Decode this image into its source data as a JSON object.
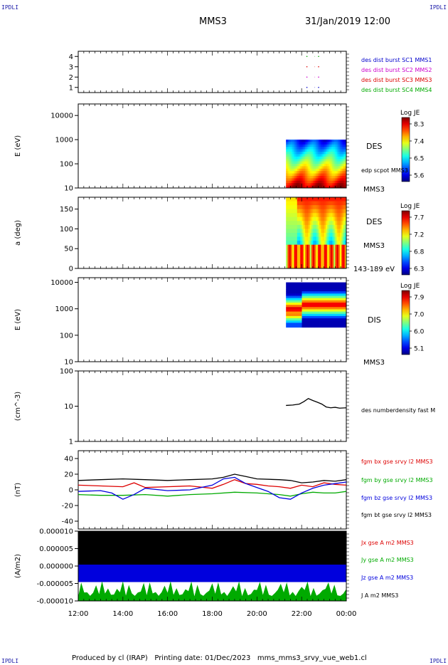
{
  "header": {
    "corner_label": "IPDLI",
    "spacecraft": "MMS3",
    "datetime": "31/Jan/2019 12:00"
  },
  "footer": {
    "produced_by": "Produced by cl (IRAP)",
    "printing_date": "Printing date: 01/Dec/2023",
    "filename": "mms_mms3_srvy_vue_web1.cl"
  },
  "colors": {
    "mms1": "#0000cc",
    "mms2": "#cc00cc",
    "mms3": "#dd0000",
    "mms4": "#00aa00",
    "bx": "#dd0000",
    "by": "#00aa00",
    "bz": "#0000dd",
    "bt": "#000000"
  },
  "chart_data": [
    {
      "id": "burst",
      "type": "line",
      "ylim": [
        0.5,
        4.5
      ],
      "yticks": [
        "1",
        "2",
        "3",
        "4"
      ],
      "series": [
        {
          "name": "des dist burst SC1 MMS1",
          "color": "#0000cc",
          "y": 1,
          "x_hours": [
            10.3,
            10.6
          ]
        },
        {
          "name": "des dist burst SC2 MMS2",
          "color": "#cc00cc",
          "y": 2,
          "x_hours": [
            10.3,
            10.6
          ]
        },
        {
          "name": "des dist burst SC3 MMS3",
          "color": "#dd0000",
          "y": 3,
          "x_hours": [
            10.3,
            10.6
          ]
        },
        {
          "name": "des dist burst SC4 MMS4",
          "color": "#00aa00",
          "y": 4,
          "x_hours": [
            10.3,
            10.6
          ]
        }
      ]
    },
    {
      "id": "des_energy",
      "type": "heatmap",
      "ylabel": "E (eV)",
      "yscale": "log",
      "ylim": [
        10,
        30000
      ],
      "yticks": [
        "10",
        "100",
        "1000",
        "10000"
      ],
      "data_start_hour": 9.3,
      "data_y_range": [
        10,
        1000
      ],
      "colorbar": {
        "title": "Log JE",
        "ticks": [
          "8.3",
          "7.4",
          "6.5",
          "5.6"
        ]
      },
      "labels": [
        "DES",
        "edp scpot MMS3",
        "MMS3"
      ]
    },
    {
      "id": "des_pitch",
      "type": "heatmap",
      "ylabel": "a (deg)",
      "ylim": [
        0,
        180
      ],
      "yticks": [
        "0",
        "50",
        "100",
        "150"
      ],
      "data_start_hour": 9.3,
      "colorbar": {
        "title": "Log JE",
        "ticks": [
          "7.7",
          "7.2",
          "6.8",
          "6.3"
        ]
      },
      "labels": [
        "DES",
        "MMS3",
        "143-189 eV"
      ]
    },
    {
      "id": "dis_energy",
      "type": "heatmap",
      "ylabel": "E (eV)",
      "yscale": "log",
      "ylim": [
        10,
        15000
      ],
      "yticks": [
        "10",
        "100",
        "1000",
        "10000"
      ],
      "data_start_hour": 9.3,
      "data_y_range": [
        200,
        10000
      ],
      "colorbar": {
        "title": "Log JE",
        "ticks": [
          "7.9",
          "7.0",
          "6.0",
          "5.1"
        ]
      },
      "labels": [
        "DIS",
        "MMS3"
      ]
    },
    {
      "id": "density",
      "type": "line",
      "ylabel": "(cm^-3)",
      "yscale": "log",
      "ylim": [
        1,
        100
      ],
      "yticks": [
        "1",
        "10",
        "100"
      ],
      "series": [
        {
          "name": "des numberdensity fast M",
          "color": "#000000",
          "x_hours": [
            9.3,
            9.6,
            9.9,
            10.1,
            10.3,
            10.5,
            10.7,
            10.9,
            11.1,
            11.3,
            11.5,
            11.7,
            12.0
          ],
          "y": [
            10.5,
            10.8,
            11.5,
            13.5,
            16.5,
            14.5,
            13.0,
            11.5,
            9.5,
            9.0,
            9.3,
            8.8,
            9.0
          ]
        }
      ]
    },
    {
      "id": "fgm",
      "type": "line",
      "ylabel": "(nT)",
      "ylim": [
        -50,
        50
      ],
      "yticks": [
        "-40",
        "-20",
        "0",
        "20",
        "40"
      ],
      "series": [
        {
          "name": "fgm bx gse srvy l2 MMS3",
          "color": "#dd0000",
          "x_hours": [
            0,
            1,
            2,
            2.5,
            3,
            4,
            5,
            6,
            6.5,
            7,
            7.5,
            8,
            8.5,
            9,
            9.5,
            10,
            10.5,
            11,
            11.5,
            12
          ],
          "y": [
            6,
            5,
            4,
            9,
            3,
            4,
            5,
            2,
            7,
            13,
            8,
            7,
            5,
            4,
            2,
            6,
            4,
            9,
            7,
            6
          ]
        },
        {
          "name": "fgm by gse srvy l2 MMS3",
          "color": "#00aa00",
          "x_hours": [
            0,
            1,
            2,
            3,
            4,
            5,
            6,
            7,
            8,
            9,
            9.5,
            10,
            10.5,
            11,
            11.5,
            12
          ],
          "y": [
            -6,
            -7,
            -7,
            -6,
            -8,
            -6,
            -5,
            -3,
            -4,
            -6,
            -8,
            -5,
            -3,
            -4,
            -4,
            -2
          ]
        },
        {
          "name": "fgm bz gse srvy l2 MMS3",
          "color": "#0000dd",
          "x_hours": [
            0,
            1,
            1.5,
            2,
            2.5,
            3,
            4,
            5,
            6,
            6.5,
            7,
            7.5,
            8,
            8.5,
            9,
            9.5,
            10,
            10.5,
            11,
            11.5,
            12
          ],
          "y": [
            -2,
            -1,
            -4,
            -12,
            -6,
            2,
            -1,
            0,
            6,
            14,
            16,
            8,
            3,
            -2,
            -10,
            -12,
            -4,
            2,
            6,
            8,
            10
          ]
        },
        {
          "name": "fgm bt gse srvy l2 MMS3",
          "color": "#000000",
          "x_hours": [
            0,
            1,
            2,
            3,
            4,
            5,
            6,
            6.5,
            7,
            7.5,
            8,
            9,
            9.5,
            10,
            10.5,
            11,
            11.5,
            12
          ],
          "y": [
            12,
            13,
            14,
            13,
            12,
            13,
            14,
            16,
            20,
            17,
            14,
            13,
            12,
            9,
            10,
            12,
            11,
            13
          ]
        }
      ]
    },
    {
      "id": "current",
      "type": "area",
      "ylabel": "(A/m2)",
      "ylim": [
        -1e-05,
        1e-05
      ],
      "yticks": [
        "-0.000010",
        "-0.000005",
        "0.000000",
        "0.000005",
        "0.000010"
      ],
      "series": [
        {
          "name": "Jx gse A m2 MMS3",
          "color": "#dd0000"
        },
        {
          "name": "Jy gse A m2 MMS3",
          "color": "#00aa00"
        },
        {
          "name": "Jz gse A m2 MMS3",
          "color": "#0000dd"
        },
        {
          "name": "J A m2 MMS3",
          "color": "#000000"
        }
      ]
    }
  ],
  "xaxis": {
    "ticks": [
      "12:00",
      "14:00",
      "16:00",
      "18:00",
      "20:00",
      "22:00",
      "00:00"
    ],
    "range_hours": [
      0,
      12
    ]
  }
}
